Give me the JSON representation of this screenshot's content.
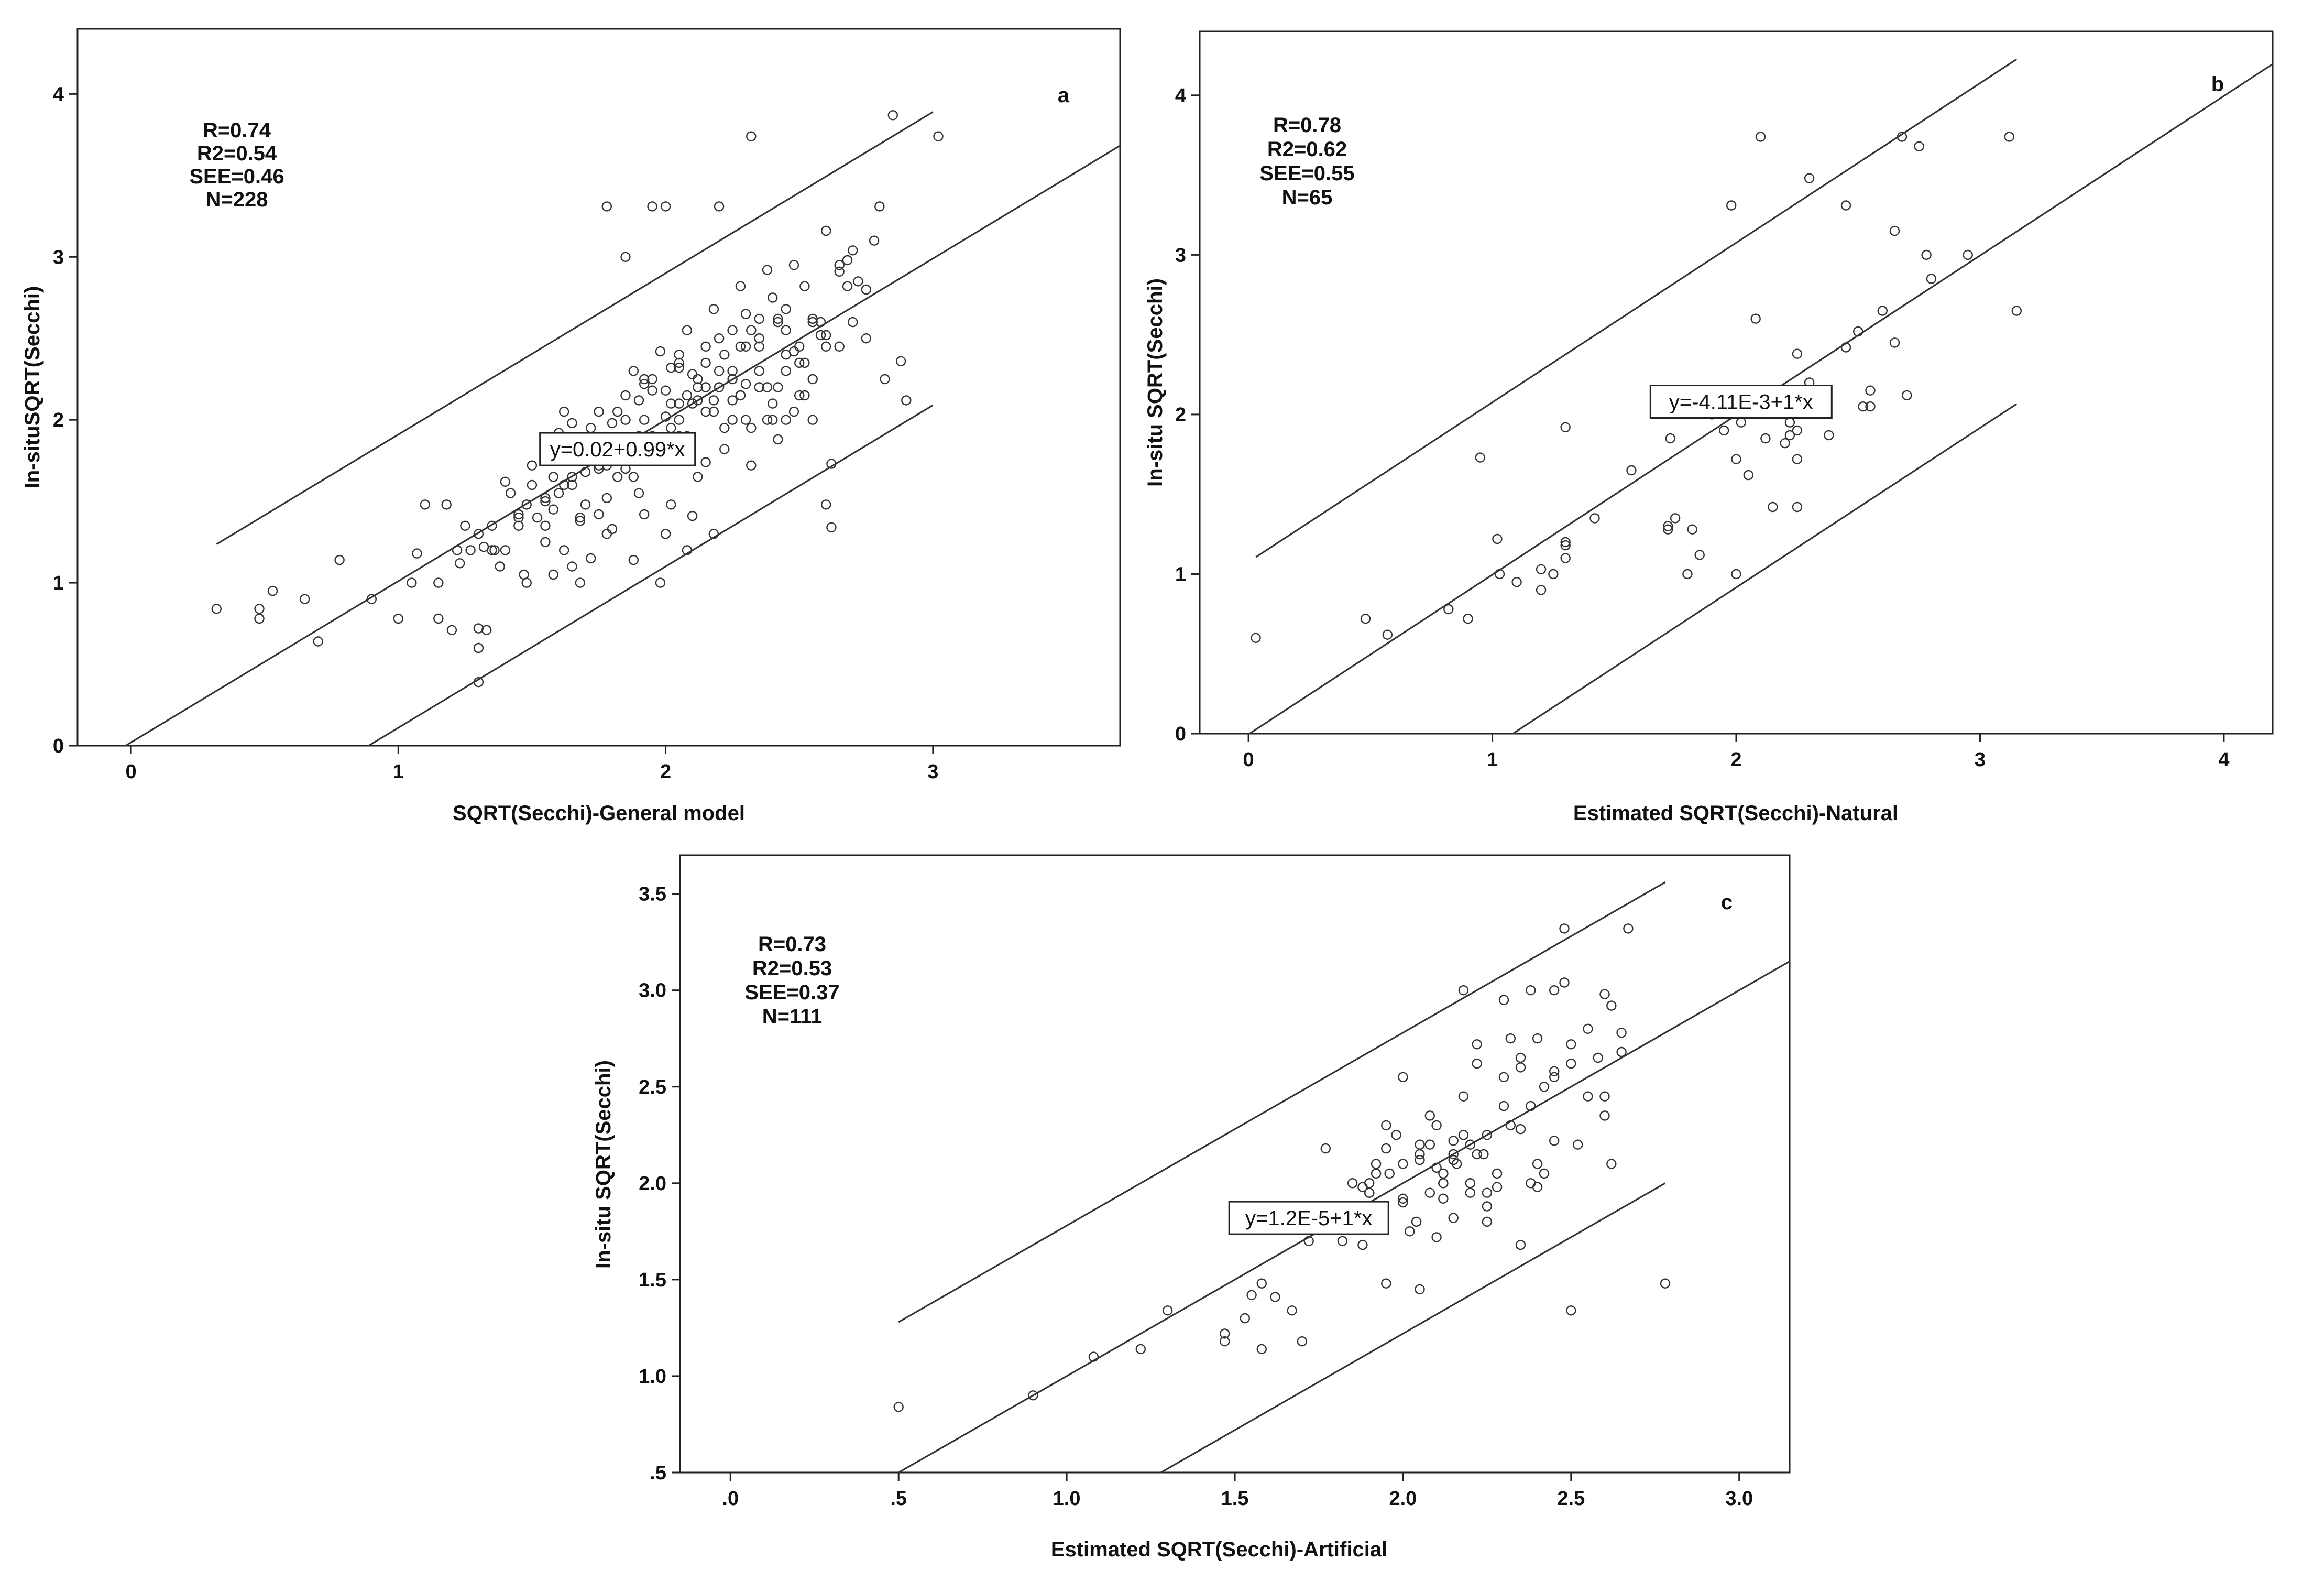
{
  "chart_data": [
    {
      "type": "scatter",
      "panel": "a",
      "xlabel": "SQRT(Secchi)-General model",
      "ylabel": "In-situSQRT(Secchi)",
      "xlim": [
        -0.2,
        3.7
      ],
      "ylim": [
        0,
        4.4
      ],
      "xticks": [
        0,
        1,
        2,
        3
      ],
      "xtick_labels": [
        "0",
        "1",
        "2",
        "3"
      ],
      "yticks": [
        0,
        1,
        2,
        3,
        4
      ],
      "ytick_labels": [
        "0",
        "1",
        "2",
        "3",
        "4"
      ],
      "stats": [
        "R=0.74",
        "R2=0.54",
        "SEE=0.46",
        "N=228"
      ],
      "equation": "y=0.02+0.99*x",
      "equation_at": [
        1.82,
        1.82
      ],
      "fit": {
        "intercept": 0.02,
        "slope": 0.99,
        "band": 0.9,
        "band_x": [
          0.32,
          3.0
        ]
      },
      "x": [
        0.32,
        0.48,
        0.48,
        0.53,
        0.65,
        0.7,
        0.78,
        0.9,
        1.0,
        1.07,
        1.1,
        1.15,
        1.2,
        1.23,
        1.27,
        1.3,
        1.33,
        1.35,
        1.36,
        1.4,
        1.45,
        1.47,
        1.5,
        1.55,
        1.58,
        1.62,
        1.65,
        1.68,
        1.7,
        1.72,
        1.75,
        1.78,
        1.8,
        1.82,
        1.85,
        1.88,
        1.9,
        1.92,
        1.95,
        1.98,
        2.0,
        2.02,
        2.05,
        2.08,
        2.1,
        2.12,
        2.15,
        2.18,
        2.2,
        2.22,
        2.25,
        2.28,
        2.3,
        2.32,
        2.35,
        2.38,
        2.4,
        2.42,
        2.45,
        2.48,
        2.5,
        2.52,
        2.55,
        2.58,
        2.6,
        2.62,
        2.65,
        2.68,
        2.7,
        2.75,
        2.8,
        2.85,
        2.88,
        3.02,
        1.78,
        1.85,
        1.95,
        2.0,
        2.2,
        2.32,
        2.48,
        2.72,
        1.4,
        1.5,
        1.6,
        1.65,
        1.75,
        1.8,
        1.9,
        2.0,
        2.1,
        2.15,
        2.25,
        2.35,
        2.45,
        2.55,
        1.62,
        1.72,
        1.85,
        1.95,
        2.05,
        2.15,
        2.25,
        2.35,
        2.45,
        2.6,
        1.7,
        1.82,
        1.92,
        2.02,
        2.12,
        2.22,
        2.32,
        2.42,
        2.52,
        2.65,
        1.55,
        1.68,
        1.78,
        1.88,
        1.98,
        2.08,
        2.18,
        2.28,
        2.38,
        2.5,
        1.32,
        1.38,
        1.48,
        1.58,
        1.68,
        2.6,
        2.62,
        1.3,
        1.3,
        1.22,
        1.15,
        1.05,
        1.3,
        1.42,
        1.52,
        1.62,
        1.75,
        1.88,
        2.02,
        2.15,
        2.25,
        2.35,
        2.45,
        2.5,
        2.55,
        2.65,
        2.7,
        1.85,
        1.95,
        2.05,
        2.2,
        2.3,
        2.4,
        1.72,
        1.82,
        1.92,
        2.05,
        2.12,
        2.28,
        2.4,
        1.48,
        1.58,
        1.8,
        2.0,
        2.1,
        2.3,
        2.48,
        2.58,
        2.68,
        2.78,
        1.6,
        1.7,
        1.9,
        2.05,
        2.18,
        2.35,
        1.45,
        1.55,
        1.65,
        1.78,
        1.9,
        2.08,
        2.2,
        2.3,
        2.42,
        1.35,
        1.25,
        1.18,
        2.75,
        2.82,
        2.9,
        2.55,
        2.45,
        2.35,
        2.25,
        2.15,
        2.05,
        1.95,
        1.85,
        1.75,
        1.65,
        1.55,
        1.45,
        1.92,
        2.02,
        2.12,
        2.22,
        2.32,
        2.42,
        2.52,
        1.88,
        1.98,
        2.08,
        2.18,
        2.28,
        2.38,
        2.6
      ],
      "y": [
        0.84,
        0.84,
        0.78,
        0.95,
        0.9,
        0.64,
        1.14,
        0.9,
        0.78,
        1.18,
        1.48,
        0.78,
        0.71,
        1.12,
        1.2,
        0.39,
        0.71,
        1.35,
        1.2,
        1.2,
        1.42,
        1.05,
        1.6,
        1.35,
        1.45,
        1.2,
        1.1,
        1.4,
        1.48,
        1.15,
        1.42,
        1.3,
        1.33,
        1.65,
        1.7,
        1.14,
        1.55,
        1.42,
        1.75,
        1.0,
        1.3,
        1.48,
        1.9,
        1.2,
        1.41,
        1.65,
        1.74,
        1.3,
        2.2,
        1.82,
        2.0,
        2.45,
        2.0,
        1.95,
        2.5,
        2.0,
        2.1,
        2.2,
        2.0,
        2.05,
        2.15,
        2.35,
        2.62,
        2.52,
        2.45,
        1.73,
        2.91,
        2.98,
        3.04,
        2.8,
        3.31,
        3.87,
        2.36,
        3.74,
        3.31,
        3.0,
        3.31,
        3.31,
        3.31,
        3.74,
        2.95,
        2.85,
        1.62,
        1.72,
        1.92,
        1.98,
        2.05,
        1.98,
        2.12,
        2.18,
        2.28,
        2.35,
        2.25,
        2.45,
        2.55,
        2.6,
        2.05,
        1.95,
        2.15,
        2.25,
        2.32,
        2.45,
        2.55,
        2.62,
        2.68,
        2.52,
        1.8,
        1.88,
        2.0,
        2.1,
        2.25,
        2.4,
        2.55,
        2.6,
        2.82,
        2.95,
        1.25,
        1.38,
        1.52,
        1.65,
        1.78,
        1.9,
        2.05,
        2.15,
        2.2,
        2.35,
        1.22,
        1.1,
        1.0,
        1.05,
        1.0,
        1.48,
        1.34,
        0.6,
        0.72,
        1.2,
        1.0,
        1.0,
        1.3,
        1.55,
        1.4,
        1.6,
        1.72,
        1.85,
        1.95,
        2.05,
        2.12,
        2.2,
        2.3,
        2.45,
        2.0,
        2.45,
        2.6,
        2.0,
        2.18,
        2.35,
        2.5,
        2.65,
        2.75,
        1.85,
        2.05,
        2.25,
        2.4,
        2.2,
        2.15,
        2.0,
        1.48,
        1.65,
        1.82,
        2.02,
        2.1,
        2.22,
        2.42,
        2.6,
        2.82,
        3.1,
        1.55,
        1.68,
        1.85,
        2.0,
        2.12,
        2.3,
        1.35,
        1.52,
        1.65,
        1.72,
        1.9,
        2.15,
        2.3,
        2.45,
        2.62,
        1.2,
        1.35,
        1.48,
        2.5,
        2.25,
        2.12,
        2.25,
        2.4,
        2.5,
        2.3,
        2.2,
        2.1,
        1.9,
        1.8,
        1.7,
        1.6,
        1.5,
        1.4,
        2.22,
        2.32,
        2.12,
        1.95,
        1.72,
        1.88,
        2.15,
        2.3,
        2.42,
        2.55,
        2.68,
        2.82,
        2.92,
        3.16
      ],
      "labels_pos": "top-left"
    },
    {
      "type": "scatter",
      "panel": "b",
      "xlabel": "Estimated SQRT(Secchi)-Natural",
      "ylabel": "In-situ SQRT(Secchi)",
      "xlim": [
        -0.2,
        4.2
      ],
      "ylim": [
        0,
        4.4
      ],
      "xticks": [
        0,
        1,
        2,
        3,
        4
      ],
      "xtick_labels": [
        "0",
        "1",
        "2",
        "3",
        "4"
      ],
      "yticks": [
        0,
        1,
        2,
        3,
        4
      ],
      "ytick_labels": [
        "0",
        "1",
        "2",
        "3",
        "4"
      ],
      "stats": [
        "R=0.78",
        "R2=0.62",
        "SEE=0.55",
        "N=65"
      ],
      "equation": "y=-4.11E-3+1*x",
      "equation_at": [
        2.02,
        2.08
      ],
      "fit": {
        "intercept": -0.0041,
        "slope": 1.0,
        "band": 1.08,
        "band_x": [
          0.03,
          3.15
        ]
      },
      "x": [
        0.03,
        0.48,
        0.57,
        0.82,
        0.9,
        0.95,
        1.02,
        1.03,
        1.1,
        1.2,
        1.2,
        1.25,
        1.3,
        1.3,
        1.3,
        1.3,
        1.42,
        1.57,
        1.72,
        1.72,
        1.75,
        1.8,
        1.85,
        1.9,
        1.95,
        1.98,
        2.0,
        2.0,
        2.05,
        2.08,
        2.1,
        2.15,
        2.2,
        2.22,
        2.25,
        2.25,
        2.25,
        2.3,
        2.38,
        2.45,
        2.5,
        2.52,
        2.55,
        2.55,
        2.6,
        2.65,
        2.68,
        2.7,
        2.75,
        2.78,
        2.8,
        2.95,
        3.12,
        3.15,
        2.45,
        2.3,
        1.97,
        2.65,
        2.12,
        2.22,
        1.73,
        2.02,
        2.27,
        2.25,
        1.82
      ],
      "y": [
        0.6,
        0.72,
        0.62,
        0.78,
        0.72,
        1.73,
        1.22,
        1.0,
        0.95,
        0.9,
        1.03,
        1.0,
        1.1,
        1.2,
        1.18,
        1.92,
        1.35,
        1.65,
        1.3,
        1.28,
        1.35,
        1.0,
        1.12,
        2.0,
        1.9,
        3.31,
        1.0,
        1.72,
        1.62,
        2.6,
        3.74,
        1.42,
        1.82,
        1.87,
        2.38,
        1.42,
        1.9,
        3.48,
        1.87,
        3.31,
        2.52,
        2.05,
        2.05,
        2.15,
        2.65,
        3.15,
        3.74,
        2.12,
        3.68,
        3.0,
        2.85,
        3.0,
        3.74,
        2.65,
        2.42,
        2.2,
        2.0,
        2.45,
        1.85,
        1.95,
        1.85,
        1.95,
        2.12,
        1.72,
        1.28
      ],
      "labels_pos": "top-left"
    },
    {
      "type": "scatter",
      "panel": "c",
      "xlabel": "Estimated SQRT(Secchi)-Artificial",
      "ylabel": "In-situ SQRT(Secchi)",
      "xlim": [
        -0.15,
        3.15
      ],
      "ylim": [
        0.5,
        3.7
      ],
      "xticks": [
        0,
        0.5,
        1,
        1.5,
        2,
        2.5,
        3
      ],
      "xtick_labels": [
        ".0",
        ".5",
        "1.0",
        "1.5",
        "2.0",
        "2.5",
        "3.0"
      ],
      "yticks": [
        0.5,
        1,
        1.5,
        2,
        2.5,
        3,
        3.5
      ],
      "ytick_labels": [
        ".5",
        "1.0",
        "1.5",
        "2.0",
        "2.5",
        "3.0",
        "3.5"
      ],
      "stats": [
        "R=0.73",
        "R2=0.53",
        "SEE=0.37",
        "N=111"
      ],
      "equation": "y=1.2E-5+1*x",
      "equation_at": [
        1.72,
        1.82
      ],
      "fit": {
        "intercept": 1.2e-05,
        "slope": 1.0,
        "band": 0.78,
        "band_x": [
          0.5,
          2.78
        ]
      },
      "x": [
        0.5,
        0.9,
        1.08,
        1.22,
        1.3,
        1.47,
        1.47,
        1.53,
        1.55,
        1.58,
        1.58,
        1.62,
        1.67,
        1.7,
        1.72,
        1.77,
        1.82,
        1.88,
        1.9,
        1.9,
        1.92,
        1.95,
        1.95,
        1.98,
        2.0,
        2.02,
        2.05,
        2.05,
        2.08,
        2.1,
        2.1,
        2.12,
        2.12,
        2.15,
        2.15,
        2.18,
        2.18,
        2.2,
        2.2,
        2.22,
        2.22,
        2.25,
        2.25,
        2.28,
        2.3,
        2.3,
        2.32,
        2.35,
        2.35,
        2.38,
        2.38,
        2.4,
        2.4,
        2.42,
        2.45,
        2.45,
        2.48,
        2.48,
        2.5,
        2.5,
        2.52,
        2.55,
        2.58,
        2.6,
        2.6,
        2.62,
        2.62,
        2.65,
        2.67,
        2.78,
        1.9,
        1.95,
        2.0,
        2.05,
        2.08,
        2.12,
        2.15,
        2.18,
        2.22,
        2.25,
        2.28,
        2.32,
        2.35,
        2.38,
        2.42,
        2.45,
        2.5,
        2.55,
        2.6,
        2.65,
        2.0,
        2.05,
        2.1,
        2.15,
        2.2,
        2.25,
        2.3,
        2.35,
        2.4,
        2.45,
        1.85,
        1.88,
        1.92,
        1.96,
        2.0,
        2.04,
        2.08,
        2.12,
        2.16,
        2.2,
        2.24
      ],
      "y": [
        0.84,
        0.9,
        1.1,
        1.14,
        1.34,
        1.18,
        1.22,
        1.3,
        1.42,
        1.48,
        1.14,
        1.41,
        1.34,
        1.18,
        1.7,
        2.18,
        1.7,
        1.68,
        2.0,
        1.95,
        2.05,
        2.3,
        1.48,
        2.25,
        2.55,
        1.75,
        2.15,
        1.45,
        2.2,
        2.08,
        1.72,
        2.0,
        1.92,
        2.22,
        1.82,
        2.45,
        3.0,
        2.0,
        1.95,
        2.62,
        2.72,
        1.8,
        1.95,
        1.98,
        2.95,
        2.55,
        2.75,
        2.65,
        1.68,
        2.0,
        3.0,
        2.1,
        1.98,
        2.05,
        2.22,
        3.0,
        3.32,
        3.04,
        2.62,
        1.34,
        2.2,
        2.45,
        2.65,
        2.98,
        2.35,
        2.92,
        2.1,
        2.68,
        3.32,
        1.48,
        1.95,
        2.18,
        1.92,
        2.12,
        2.35,
        2.0,
        2.12,
        2.25,
        2.15,
        1.88,
        2.05,
        2.3,
        2.28,
        2.4,
        2.5,
        2.58,
        2.72,
        2.8,
        2.45,
        2.78,
        2.1,
        2.2,
        2.3,
        2.15,
        2.0,
        2.25,
        2.4,
        2.6,
        2.75,
        2.55,
        2.0,
        1.98,
        2.1,
        2.05,
        1.9,
        1.8,
        1.95,
        2.05,
        2.1,
        2.2,
        2.15
      ],
      "labels_pos": "top-left"
    }
  ]
}
